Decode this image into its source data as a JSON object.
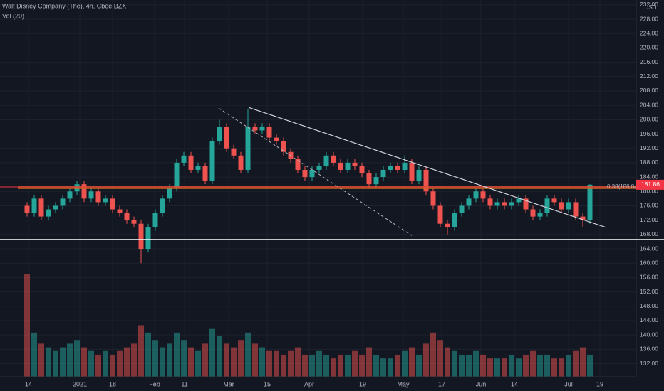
{
  "chart_data": {
    "type": "candlestick",
    "title": "Walt Disney Company (The), 4h, Cboe BZX",
    "volume_label": "Vol (20)",
    "currency": "USD",
    "up_color": "#26a69a",
    "down_color": "#ef5350",
    "ylim": [
      128.34,
      233.35
    ],
    "yticks": [
      {
        "value": 132,
        "label": "132.00"
      },
      {
        "value": 136,
        "label": "136.00"
      },
      {
        "value": 140,
        "label": "140.00"
      },
      {
        "value": 144,
        "label": "144.00"
      },
      {
        "value": 148,
        "label": "148.00"
      },
      {
        "value": 152,
        "label": "152.00"
      },
      {
        "value": 156,
        "label": "156.00"
      },
      {
        "value": 160,
        "label": "160.00"
      },
      {
        "value": 164,
        "label": "164.00"
      },
      {
        "value": 168,
        "label": "168.00"
      },
      {
        "value": 172,
        "label": "172.00"
      },
      {
        "value": 176,
        "label": "176.00"
      },
      {
        "value": 180,
        "label": "180.00"
      },
      {
        "value": 184,
        "label": "184.00"
      },
      {
        "value": 188,
        "label": "188.00"
      },
      {
        "value": 192,
        "label": "192.00"
      },
      {
        "value": 196,
        "label": "196.00"
      },
      {
        "value": 200,
        "label": "200.00"
      },
      {
        "value": 204,
        "label": "204.00"
      },
      {
        "value": 208,
        "label": "208.00"
      },
      {
        "value": 212,
        "label": "212.00"
      },
      {
        "value": 216,
        "label": "216.00"
      },
      {
        "value": 220,
        "label": "220.00"
      },
      {
        "value": 224,
        "label": "224.00"
      },
      {
        "value": 228,
        "label": "228.00"
      },
      {
        "value": 232,
        "label": "232.00"
      }
    ],
    "xticks": [
      "14",
      "2021",
      "18",
      "Feb",
      "11",
      "Mar",
      "15",
      "Apr",
      "19",
      "May",
      "17",
      "Jun",
      "14",
      "Jul",
      "19"
    ],
    "open": [
      176,
      174,
      178,
      173,
      175,
      176,
      178,
      180,
      182,
      178,
      180,
      177,
      178,
      175,
      174,
      172,
      171,
      164,
      170,
      174,
      178,
      181,
      188,
      190,
      186,
      187,
      183,
      194,
      198,
      192,
      190,
      186,
      198,
      197,
      198,
      195,
      194,
      191,
      189,
      186,
      184,
      186,
      187,
      190,
      188,
      186,
      188,
      187,
      185,
      182,
      184,
      186,
      187,
      186,
      188,
      183,
      186,
      180,
      176,
      171,
      170,
      174,
      176,
      178,
      180,
      178,
      176,
      177,
      176,
      177,
      178,
      175,
      173,
      174,
      178,
      177,
      175,
      177,
      173,
      172
    ],
    "high": [
      177,
      179,
      179,
      176,
      177,
      179,
      181,
      183,
      183,
      181,
      181,
      179,
      179,
      176,
      175,
      173,
      172,
      171,
      175,
      179,
      182,
      189,
      191,
      191,
      188,
      188,
      195,
      200,
      199,
      193,
      191,
      203,
      199,
      199,
      199,
      196,
      195,
      192,
      190,
      187,
      187,
      188,
      191,
      191,
      189,
      189,
      189,
      188,
      186,
      185,
      187,
      188,
      188,
      190,
      189,
      187,
      187,
      181,
      177,
      172,
      175,
      177,
      179,
      181,
      181,
      179,
      178,
      178,
      178,
      179,
      179,
      176,
      175,
      179,
      179,
      178,
      178,
      178,
      174,
      182
    ],
    "low": [
      173,
      173,
      172,
      172,
      174,
      175,
      177,
      179,
      177,
      177,
      176,
      176,
      174,
      173,
      171,
      170,
      160,
      163,
      169,
      173,
      177,
      180,
      187,
      185,
      185,
      182,
      182,
      193,
      191,
      189,
      185,
      185,
      196,
      196,
      194,
      193,
      190,
      188,
      185,
      183,
      183,
      185,
      186,
      187,
      185,
      185,
      186,
      184,
      181,
      181,
      183,
      185,
      185,
      185,
      182,
      182,
      179,
      175,
      170,
      168,
      169,
      173,
      175,
      177,
      177,
      175,
      175,
      175,
      175,
      176,
      174,
      172,
      172,
      173,
      176,
      174,
      174,
      172,
      170,
      171
    ],
    "close": [
      174,
      178,
      173,
      175,
      176,
      178,
      180,
      182,
      178,
      180,
      177,
      178,
      175,
      174,
      172,
      171,
      164,
      170,
      174,
      178,
      181,
      188,
      190,
      186,
      187,
      183,
      194,
      198,
      192,
      190,
      186,
      198,
      197,
      198,
      195,
      194,
      191,
      189,
      186,
      184,
      186,
      187,
      190,
      188,
      186,
      188,
      187,
      185,
      182,
      184,
      186,
      187,
      186,
      188,
      183,
      186,
      180,
      176,
      171,
      170,
      174,
      176,
      178,
      180,
      178,
      176,
      177,
      176,
      177,
      178,
      175,
      173,
      174,
      178,
      177,
      175,
      177,
      173,
      172,
      181.86
    ],
    "volume": [
      28,
      12,
      9,
      8,
      7,
      8,
      9,
      10,
      8,
      7,
      6,
      7,
      6,
      7,
      8,
      9,
      14,
      12,
      10,
      8,
      9,
      12,
      10,
      8,
      7,
      9,
      13,
      11,
      9,
      8,
      10,
      12,
      9,
      8,
      7,
      7,
      6,
      7,
      8,
      6,
      6,
      7,
      6,
      5,
      6,
      6,
      7,
      6,
      8,
      6,
      5,
      5,
      6,
      7,
      8,
      6,
      9,
      12,
      10,
      8,
      7,
      6,
      6,
      7,
      6,
      5,
      5,
      5,
      6,
      5,
      6,
      7,
      6,
      6,
      5,
      5,
      6,
      7,
      8,
      6
    ],
    "resistance": 180.84,
    "resistance_label": "0.38(180.84)",
    "support": 166.6,
    "trendline": [
      203.4,
      170
    ],
    "dashed_trendline": [
      203.2,
      167.7
    ]
  }
}
